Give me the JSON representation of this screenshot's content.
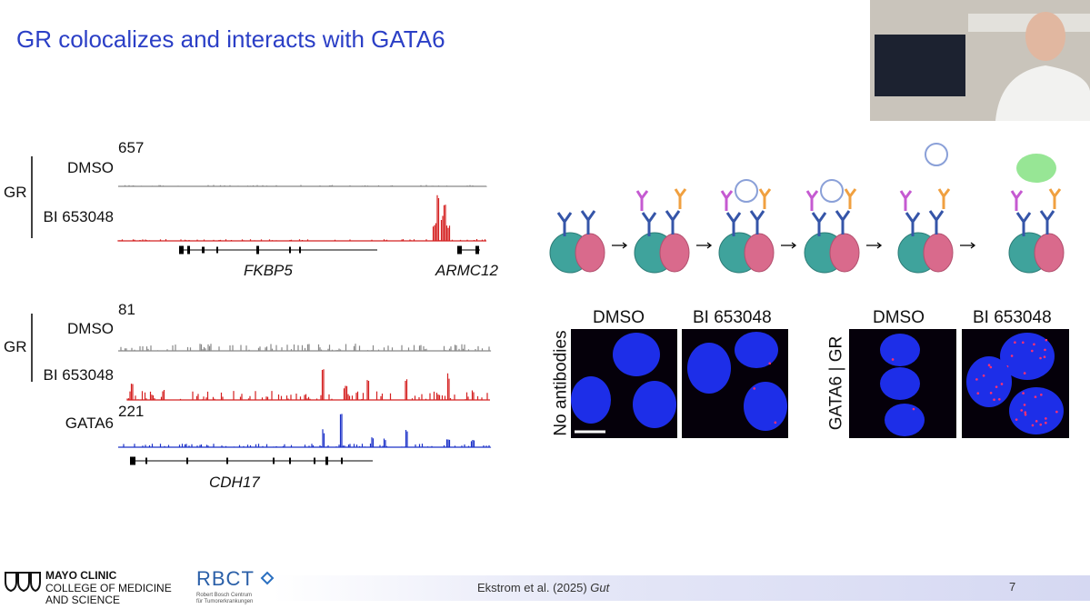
{
  "header": {
    "title": "GR colocalizes and interacts with GATA6"
  },
  "panel_a": {
    "scale": "657",
    "group": "GR",
    "tracks": [
      "DMSO",
      "BI 653048"
    ],
    "genes": [
      "FKBP5",
      "ARMC12"
    ]
  },
  "panel_b": {
    "scale_gr": "81",
    "group": "GR",
    "tracks": [
      "DMSO",
      "BI 653048",
      "GATA6"
    ],
    "scale_gata6": "221",
    "genes": [
      "CDH17"
    ]
  },
  "microscopy": {
    "left": {
      "row_label": "No antibodies",
      "columns": [
        "DMSO",
        "BI 653048"
      ]
    },
    "right": {
      "row_label": "GATA6 | GR",
      "columns": [
        "DMSO",
        "BI 653048"
      ]
    }
  },
  "footer": {
    "logo_mayo": [
      "MAYO CLINIC",
      "COLLEGE OF MEDICINE",
      "AND SCIENCE"
    ],
    "logo_rbct": "RBCT",
    "logo_rbct_sub": [
      "Robert Bosch Centrum",
      "für Tumorerkrankungen"
    ],
    "citation": "Ekstrom et al. (2025)",
    "journal": "Gut",
    "page": "7"
  }
}
